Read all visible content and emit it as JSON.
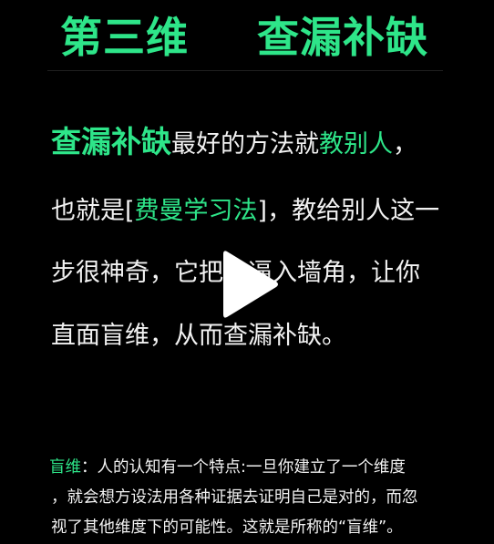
{
  "header": {
    "left_title": "第三维",
    "right_title": "查漏补缺"
  },
  "colors": {
    "accent": "#2ee589",
    "text": "#f2f2f2",
    "background": "#000000"
  },
  "content": {
    "line1": {
      "hl1": "查漏补缺",
      "t1": "最好的方法就",
      "hl2": "教别人",
      "t2": "，"
    },
    "line2": {
      "t1": "也就是[",
      "hl1": "费曼学习法",
      "t2": "]，教给别人这一"
    },
    "line3": "步很神奇，它把你逼入墙角，让你",
    "line4": "直面盲维，从而查漏补缺。"
  },
  "player": {
    "icon": "play-icon"
  },
  "footnote": {
    "term": "盲维",
    "line1_rest": "：人的认知有一个特点:一旦你建立了一个维度",
    "line2": "，就会想方设法用各种证据去证明自己是对的，而忽",
    "line3": "视了其他维度下的可能性。这就是所称的“盲维”。"
  }
}
